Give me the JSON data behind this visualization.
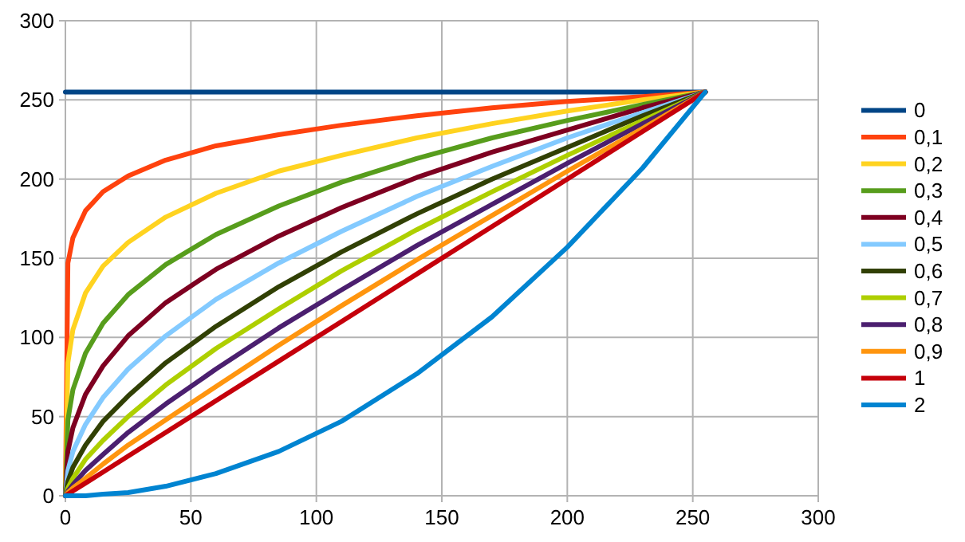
{
  "chart_data": {
    "type": "line",
    "x": [
      0,
      1,
      3,
      8,
      15,
      25,
      40,
      60,
      85,
      110,
      140,
      170,
      200,
      230,
      255
    ],
    "xlim": [
      0,
      300
    ],
    "xticks": [
      0,
      50,
      100,
      150,
      200,
      250,
      300
    ],
    "ylim": [
      0,
      300
    ],
    "yticks": [
      0,
      50,
      100,
      150,
      200,
      250,
      300
    ],
    "grid": true,
    "legend": "right",
    "marker": "none",
    "line_style": "solid",
    "series": [
      {
        "name": "0",
        "color": "#004586",
        "values": [
          255,
          255,
          255,
          255,
          255,
          255,
          255,
          255,
          255,
          255,
          255,
          255,
          255,
          255,
          255
        ]
      },
      {
        "name": "0,1",
        "color": "#ff420e",
        "values": [
          0,
          147,
          163,
          180,
          192,
          202,
          212,
          221,
          228,
          234,
          240,
          245,
          249,
          252,
          255
        ]
      },
      {
        "name": "0,2",
        "color": "#ffd320",
        "values": [
          0,
          84,
          105,
          128,
          145,
          160,
          176,
          191,
          205,
          215,
          226,
          235,
          243,
          250,
          255
        ]
      },
      {
        "name": "0,3",
        "color": "#579d1c",
        "values": [
          0,
          48,
          67,
          90,
          109,
          127,
          146,
          165,
          183,
          198,
          213,
          226,
          237,
          247,
          255
        ]
      },
      {
        "name": "0,4",
        "color": "#7e0021",
        "values": [
          0,
          28,
          43,
          64,
          82,
          101,
          122,
          143,
          164,
          182,
          201,
          217,
          231,
          245,
          255
        ]
      },
      {
        "name": "0,5",
        "color": "#83caff",
        "values": [
          0,
          16,
          28,
          45,
          62,
          80,
          101,
          124,
          147,
          167,
          189,
          208,
          226,
          242,
          255
        ]
      },
      {
        "name": "0,6",
        "color": "#314004",
        "values": [
          0,
          9,
          18,
          32,
          47,
          63,
          84,
          107,
          132,
          154,
          178,
          200,
          220,
          240,
          255
        ]
      },
      {
        "name": "0,7",
        "color": "#aecf00",
        "values": [
          0,
          5,
          11,
          23,
          35,
          50,
          70,
          93,
          118,
          142,
          168,
          192,
          215,
          237,
          255
        ]
      },
      {
        "name": "0,8",
        "color": "#4b1f6f",
        "values": [
          0,
          3,
          7,
          16,
          26,
          40,
          58,
          80,
          106,
          130,
          158,
          184,
          210,
          235,
          255
        ]
      },
      {
        "name": "0,9",
        "color": "#ff950e",
        "values": [
          0,
          2,
          5,
          11,
          20,
          32,
          48,
          69,
          95,
          120,
          149,
          177,
          205,
          232,
          255
        ]
      },
      {
        "name": "1",
        "color": "#c5000b",
        "values": [
          0,
          1,
          3,
          8,
          15,
          25,
          40,
          60,
          85,
          110,
          140,
          170,
          200,
          230,
          255
        ]
      },
      {
        "name": "2",
        "color": "#0084d1",
        "values": [
          0,
          0,
          0,
          0,
          1,
          2,
          6,
          14,
          28,
          47,
          77,
          113,
          157,
          207,
          255
        ]
      }
    ]
  }
}
